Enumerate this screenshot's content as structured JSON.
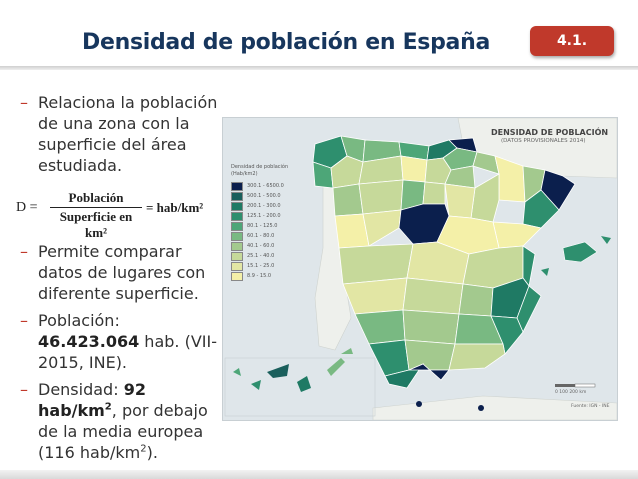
{
  "slide": {
    "title": "Densidad de población en España",
    "badge": "4.1."
  },
  "bullets_top": [
    {
      "dash": "–",
      "text": "Relaciona la población de una zona con la superficie del área estudiada."
    }
  ],
  "formula": {
    "lhs": "D =",
    "numerator": "Población",
    "denominator": "Superficie en km²",
    "rhs": "= hab/km²"
  },
  "bullets_bottom": {
    "b1": {
      "dash": "–",
      "text": "Permite comparar datos de lugares con diferente superficie."
    },
    "b2": {
      "dash": "–",
      "prefix": "Población: ",
      "bold": "46.423.064",
      "suffix": " hab. (VII-2015, INE)."
    },
    "b3": {
      "dash": "–",
      "prefix": "Densidad: ",
      "bold": "92 hab/km",
      "bold_sup": "2",
      "suffix": ", por debajo de la media europea (116 hab/km",
      "suffix_sup": "2",
      "end": ")."
    }
  },
  "map": {
    "title": "DENSIDAD DE POBLACIÓN",
    "subtitle": "(DATOS PROVISIONALES 2014)",
    "legend_title": "Densidad de población (Hab/km2)",
    "legend": [
      {
        "label": "300.1 - 6500.0",
        "color": "#0b1f4d"
      },
      {
        "label": "500.1 - 500.0",
        "color": "#1a5f5c"
      },
      {
        "label": "200.1 - 300.0",
        "color": "#1f7a64"
      },
      {
        "label": "125.1 - 200.0",
        "color": "#2e8f6e"
      },
      {
        "label": "80.1 - 125.0",
        "color": "#4da678"
      },
      {
        "label": "60.1 - 80.0",
        "color": "#79b982"
      },
      {
        "label": "40.1 - 60.0",
        "color": "#a3c98e"
      },
      {
        "label": "25.1 - 40.0",
        "color": "#c6d99a"
      },
      {
        "label": "15.1 - 25.0",
        "color": "#e2e6a4"
      },
      {
        "label": "8.9 - 15.0",
        "color": "#f4f0a8"
      }
    ],
    "scale": "0    100    200 km",
    "source": "Fuente: IGN - INE"
  }
}
